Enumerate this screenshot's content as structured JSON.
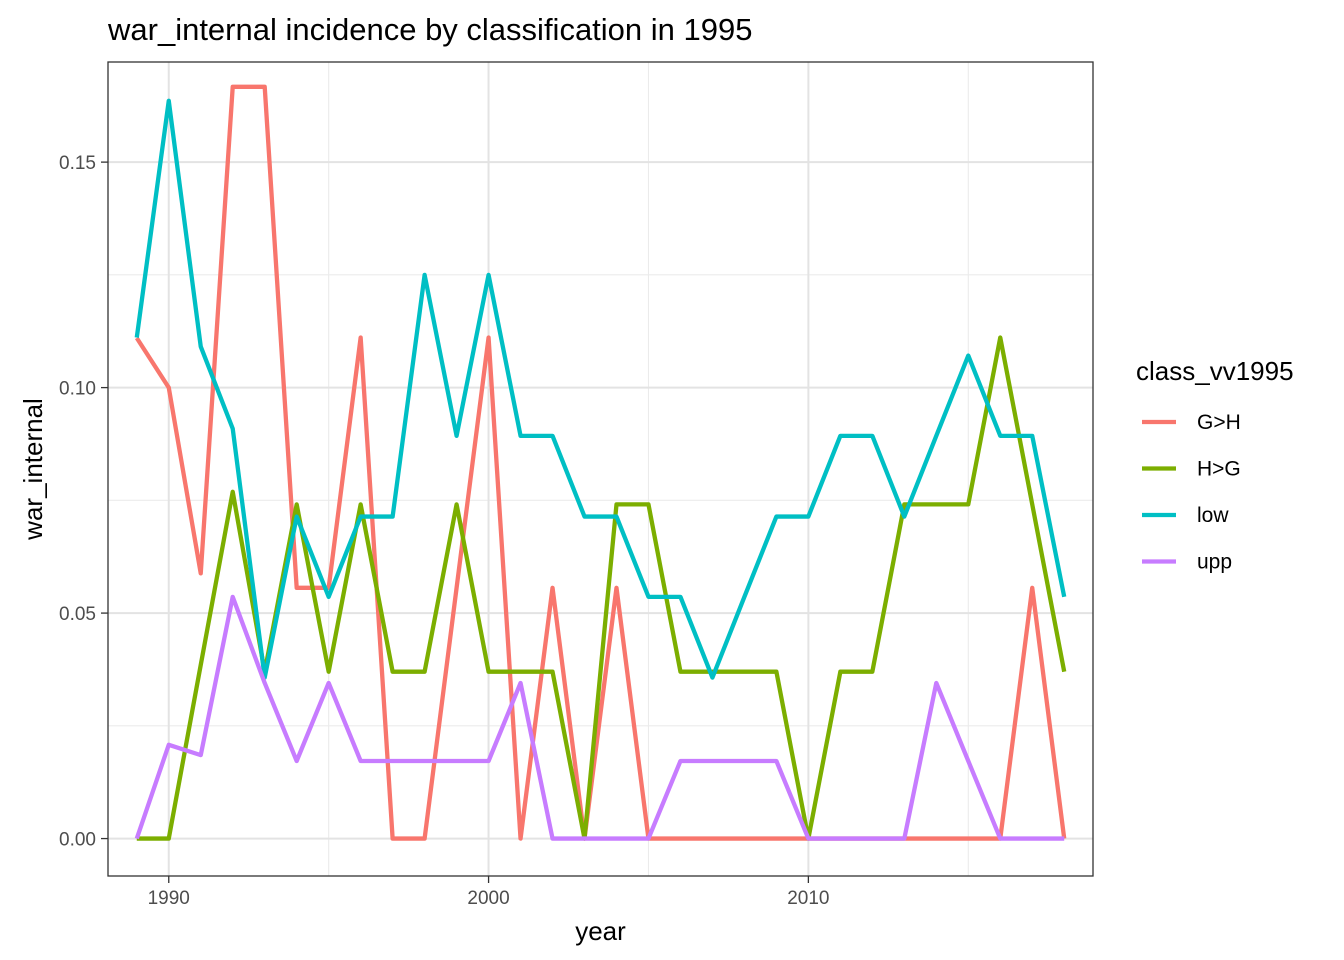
{
  "chart_data": {
    "type": "line",
    "title": "war_internal  incidence by classification in 1995",
    "xlabel": "year",
    "ylabel": "war_internal",
    "xlim": [
      1988.1,
      2018.9
    ],
    "ylim": [
      -0.0083,
      0.1722
    ],
    "x_ticks": [
      1990,
      2000,
      2010
    ],
    "y_ticks": [
      0.0,
      0.05,
      0.1,
      0.15
    ],
    "x_tick_labels": [
      "1990",
      "2000",
      "2010"
    ],
    "y_tick_labels": [
      "0.00",
      "0.05",
      "0.10",
      "0.15"
    ],
    "grid": true,
    "legend": {
      "title": "class_vv1995",
      "position": "right"
    },
    "x": [
      1989,
      1990,
      1991,
      1992,
      1993,
      1994,
      1995,
      1996,
      1997,
      1998,
      1999,
      2000,
      2001,
      2002,
      2003,
      2004,
      2005,
      2006,
      2007,
      2008,
      2009,
      2010,
      2011,
      2012,
      2013,
      2014,
      2015,
      2016,
      2017,
      2018
    ],
    "series": [
      {
        "name": "G>H",
        "color": "#F8766D",
        "values": [
          0.111,
          0.1,
          0.0588,
          0.1667,
          0.1667,
          0.0556,
          0.0556,
          0.1111,
          0.0,
          0.0,
          0.0556,
          0.1111,
          0.0,
          0.0556,
          0.0,
          0.0556,
          0.0,
          0.0,
          0.0,
          0.0,
          0.0,
          0.0,
          0.0,
          0.0,
          0.0,
          0.0,
          0.0,
          0.0,
          0.0556,
          0.0
        ]
      },
      {
        "name": "H>G",
        "color": "#7CAE00",
        "values": [
          0.0,
          0.0,
          0.0385,
          0.0769,
          0.037,
          0.0741,
          0.037,
          0.0741,
          0.037,
          0.037,
          0.0741,
          0.037,
          0.037,
          0.037,
          0.0,
          0.0741,
          0.0741,
          0.037,
          0.037,
          0.037,
          0.037,
          0.0,
          0.037,
          0.037,
          0.0741,
          0.0741,
          0.0741,
          0.1111,
          0.0741,
          0.037
        ]
      },
      {
        "name": "low",
        "color": "#00BFC4",
        "values": [
          0.1111,
          0.1636,
          0.1091,
          0.0909,
          0.0357,
          0.0714,
          0.0536,
          0.0714,
          0.0714,
          0.125,
          0.0893,
          0.125,
          0.0893,
          0.0893,
          0.0714,
          0.0714,
          0.0536,
          0.0536,
          0.0357,
          0.0536,
          0.0714,
          0.0714,
          0.0893,
          0.0893,
          0.0714,
          0.0893,
          0.1071,
          0.0893,
          0.0893,
          0.0536
        ]
      },
      {
        "name": "upp",
        "color": "#C77CFF",
        "values": [
          0.0,
          0.0208,
          0.0185,
          0.0536,
          0.0345,
          0.0172,
          0.0345,
          0.0172,
          0.0172,
          0.0172,
          0.0172,
          0.0172,
          0.0345,
          0.0,
          0.0,
          0.0,
          0.0,
          0.0172,
          0.0172,
          0.0172,
          0.0172,
          0.0,
          0.0,
          0.0,
          0.0,
          0.0345,
          0.0172,
          0.0,
          0.0,
          0.0
        ]
      }
    ]
  }
}
